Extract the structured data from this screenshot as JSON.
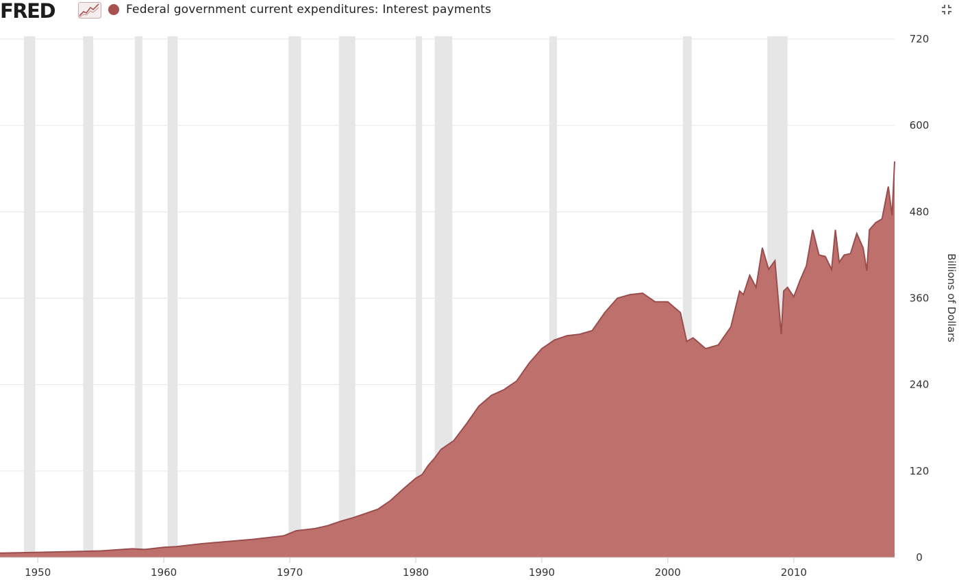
{
  "header": {
    "logo_text": "FRED",
    "logo_icon": "chart-line-icon",
    "title": "Federal government current expenditures: Interest payments",
    "shrink_icon": "collapse-arrows-icon"
  },
  "colors": {
    "series_fill": "#bd706c",
    "series_line": "#9b4d4e",
    "legend_dot": "#a8524f",
    "recession": "#e6e6e6",
    "grid": "#e6e6e6"
  },
  "chart_data": {
    "type": "area",
    "title": "Federal government current expenditures: Interest payments",
    "ylabel": "Billions of Dollars",
    "xlim": [
      1947.0,
      2018.0
    ],
    "ylim": [
      0,
      720
    ],
    "yticks": [
      0,
      120,
      240,
      360,
      480,
      600,
      720
    ],
    "xticks": [
      1950,
      1960,
      1970,
      1980,
      1990,
      2000,
      2010
    ],
    "grid": true,
    "legend": "top-left",
    "recessions": [
      [
        1948.9,
        1949.8
      ],
      [
        1953.6,
        1954.4
      ],
      [
        1957.7,
        1958.3
      ],
      [
        1960.3,
        1961.1
      ],
      [
        1969.9,
        1970.9
      ],
      [
        1973.9,
        1975.2
      ],
      [
        1980.0,
        1980.5
      ],
      [
        1981.5,
        1982.9
      ],
      [
        1990.6,
        1991.2
      ],
      [
        2001.2,
        2001.9
      ],
      [
        2007.9,
        2009.5
      ]
    ],
    "series": [
      {
        "name": "Federal government current expenditures: Interest payments",
        "x": [
          1947.0,
          1950,
          1955,
          1957.5,
          1958.5,
          1960,
          1961,
          1963,
          1965,
          1967,
          1968.5,
          1969.5,
          1970.5,
          1972,
          1973,
          1974,
          1975,
          1976,
          1977,
          1978,
          1979,
          1980,
          1980.5,
          1981,
          1981.5,
          1982,
          1983,
          1984,
          1985,
          1986,
          1987,
          1988,
          1989,
          1990,
          1991,
          1992,
          1993,
          1994,
          1995,
          1996,
          1997,
          1998,
          1999,
          2000,
          2001,
          2001.5,
          2002,
          2003,
          2004,
          2005,
          2005.7,
          2006,
          2006.5,
          2007,
          2007.5,
          2008,
          2008.5,
          2009,
          2009.2,
          2009.5,
          2010,
          2010.5,
          2011,
          2011.5,
          2012,
          2012.5,
          2013,
          2013.3,
          2013.6,
          2014,
          2014.5,
          2015,
          2015.5,
          2015.8,
          2016,
          2016.5,
          2017,
          2017.5,
          2017.8,
          2018.0
        ],
        "values": [
          6,
          7,
          9,
          12,
          11,
          14,
          15,
          19,
          22,
          25,
          28,
          30,
          37,
          40,
          44,
          50,
          55,
          61,
          67,
          79,
          95,
          110,
          115,
          128,
          138,
          150,
          162,
          185,
          210,
          225,
          233,
          245,
          270,
          290,
          302,
          308,
          310,
          315,
          340,
          360,
          365,
          367,
          355,
          355,
          340,
          300,
          305,
          290,
          295,
          320,
          370,
          365,
          392,
          375,
          430,
          400,
          412,
          310,
          370,
          375,
          362,
          385,
          405,
          455,
          420,
          418,
          400,
          455,
          410,
          420,
          422,
          450,
          430,
          398,
          455,
          465,
          470,
          515,
          475,
          550
        ]
      }
    ]
  }
}
